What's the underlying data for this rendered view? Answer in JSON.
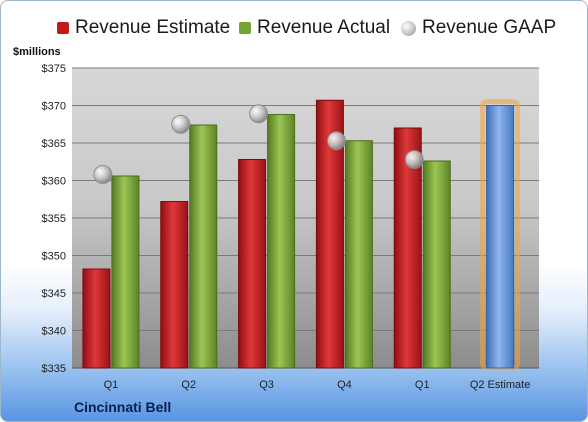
{
  "chart_data": {
    "type": "bar",
    "ylabel": "$millions",
    "ylim": [
      335,
      375
    ],
    "yticks": [
      "$335",
      "$340",
      "$345",
      "$350",
      "$355",
      "$360",
      "$365",
      "$370",
      "$375"
    ],
    "yticks_values": [
      335,
      340,
      345,
      350,
      355,
      360,
      365,
      370,
      375
    ],
    "categories": [
      "Q1",
      "Q2",
      "Q3",
      "Q4",
      "Q1",
      "Q2 Estimate"
    ],
    "series": [
      {
        "name": "Revenue Estimate",
        "type": "bar",
        "color": "#c0191e",
        "values": [
          348.2,
          357.2,
          362.8,
          370.7,
          367.0,
          null
        ]
      },
      {
        "name": "Revenue Actual",
        "type": "bar",
        "color": "#77a234",
        "values": [
          360.6,
          367.4,
          368.8,
          365.3,
          362.6,
          null
        ]
      },
      {
        "name": "Revenue GAAP",
        "type": "marker",
        "color": "#bdbdbd",
        "values": [
          360.8,
          367.5,
          368.9,
          365.3,
          362.8,
          null
        ]
      },
      {
        "name": "Q2 Estimate",
        "type": "bar",
        "color": "#5f8fd4",
        "highlight": "#f2a33a",
        "values": [
          null,
          null,
          null,
          null,
          null,
          370.0
        ]
      }
    ],
    "grid": true,
    "legend": "top"
  },
  "company": "Cincinnati Bell"
}
